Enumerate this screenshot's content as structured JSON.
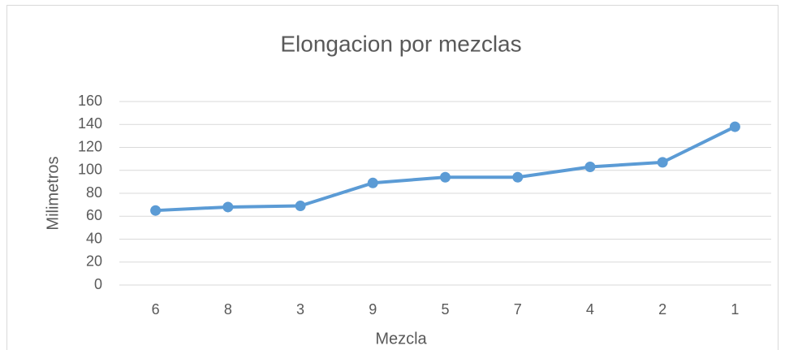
{
  "chart_data": {
    "type": "line",
    "title": "Elongacion por mezclas",
    "x_label": "Mezcla",
    "y_label": "Milimetros",
    "categories": [
      "6",
      "8",
      "3",
      "9",
      "5",
      "7",
      "4",
      "2",
      "1"
    ],
    "series": [
      {
        "name": "Milimetros",
        "color": "#5b9bd5",
        "values": [
          65,
          68,
          69,
          89,
          94,
          94,
          103,
          107,
          138
        ]
      }
    ],
    "ylim": [
      0,
      160
    ],
    "yticks": [
      0,
      20,
      40,
      60,
      80,
      100,
      120,
      140,
      160
    ],
    "grid": true
  }
}
